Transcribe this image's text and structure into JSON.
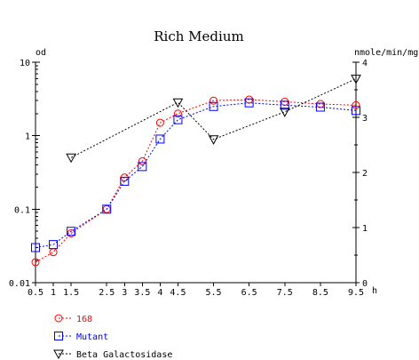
{
  "chart_data": {
    "type": "line",
    "title": "Rich Medium",
    "ylabel_left": "od",
    "ylabel_right": "nmole/min/mg",
    "xlabel": "h",
    "x_ticks": [
      "0.5",
      "1",
      "1.5",
      "2.5",
      "3",
      "3.5",
      "4",
      "4.5",
      "5.5",
      "6.5",
      "7.5",
      "8.5",
      "9.5"
    ],
    "xlim": [
      0.5,
      9.5
    ],
    "ylim_left": [
      0.01,
      10
    ],
    "y_scale_left": "log",
    "y_ticks_left": [
      "0.01",
      "0.1",
      "1",
      "10"
    ],
    "ylim_right": [
      0,
      4
    ],
    "y_ticks_right": [
      "0",
      "1",
      "2",
      "3",
      "4"
    ],
    "legend_position": "bottom-left",
    "series": [
      {
        "name": "168",
        "axis": "left",
        "color": "#ff0000",
        "marker": "circle",
        "x": [
          0.5,
          1,
          1.5,
          2.5,
          3,
          3.5,
          4,
          4.5,
          5.5,
          6.5,
          7.5,
          8.5,
          9.5
        ],
        "y": [
          0.019,
          0.026,
          0.047,
          0.1,
          0.27,
          0.45,
          1.5,
          2.0,
          3.0,
          3.1,
          2.9,
          2.7,
          2.6
        ]
      },
      {
        "name": "Mutant",
        "axis": "left",
        "color": "#0000ff",
        "marker": "square",
        "x": [
          0.5,
          1,
          1.5,
          2.5,
          3,
          3.5,
          4,
          4.5,
          5.5,
          6.5,
          7.5,
          8.5,
          9.5
        ],
        "y": [
          0.03,
          0.033,
          0.05,
          0.1,
          0.24,
          0.38,
          0.9,
          1.65,
          2.5,
          2.8,
          2.6,
          2.45,
          2.2
        ]
      },
      {
        "name": "Beta Galactosidase",
        "axis": "right",
        "color": "#000000",
        "marker": "triangle-down",
        "x": [
          1.5,
          4.5,
          5.5,
          7.5,
          9.5
        ],
        "y": [
          2.27,
          3.27,
          2.6,
          3.1,
          3.7
        ]
      }
    ]
  }
}
